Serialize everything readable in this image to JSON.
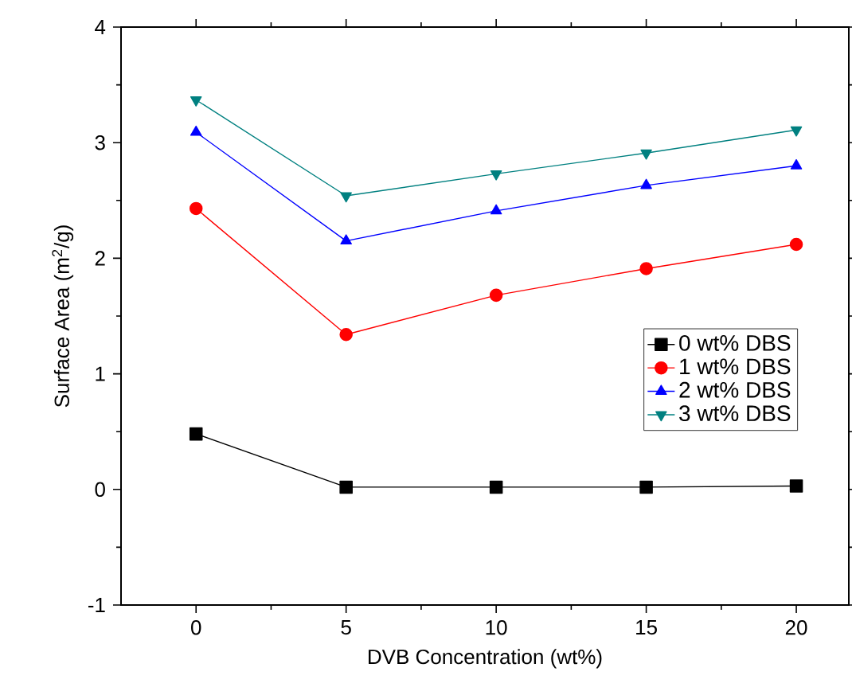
{
  "chart_data": {
    "type": "line",
    "xlabel": "DVB Concentration (wt%)",
    "ylabel": "Surface Area (m$^{2}$/g)",
    "x": [
      0,
      5,
      10,
      15,
      20
    ],
    "series": [
      {
        "name": "0 wt% DBS",
        "color": "#000000",
        "marker": "square",
        "values": [
          0.48,
          0.02,
          0.02,
          0.02,
          0.03
        ]
      },
      {
        "name": "1 wt% DBS",
        "color": "#ff0000",
        "marker": "circle",
        "values": [
          2.43,
          1.34,
          1.68,
          1.91,
          2.12
        ]
      },
      {
        "name": "2 wt% DBS",
        "color": "#0000ff",
        "marker": "triangle",
        "values": [
          3.09,
          2.15,
          2.41,
          2.63,
          2.8
        ]
      },
      {
        "name": "3 wt% DBS",
        "color": "#008080",
        "marker": "triangle down",
        "values": [
          3.37,
          2.54,
          2.73,
          2.91,
          3.11
        ]
      }
    ],
    "xlim": [
      -2.5,
      21.75
    ],
    "ylim": [
      -1,
      4
    ],
    "xticks": [
      0,
      5,
      10,
      15,
      20
    ],
    "yticks": [
      -1,
      0,
      1,
      2,
      3,
      4
    ],
    "grid": false,
    "legend": "right",
    "line_style": "solid"
  }
}
